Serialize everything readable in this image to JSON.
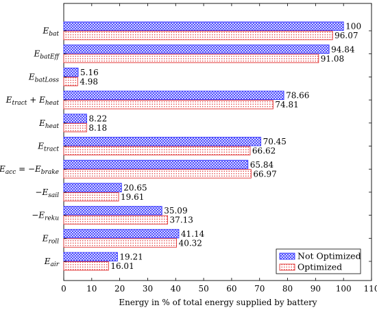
{
  "chart_data": {
    "type": "bar",
    "orientation": "horizontal",
    "xlabel": "Energy in % of total energy supplied by battery",
    "xlim": [
      0,
      110
    ],
    "xticks": [
      "0",
      "10",
      "20",
      "30",
      "40",
      "50",
      "60",
      "70",
      "80",
      "90",
      "100",
      "110"
    ],
    "categories": [
      [
        {
          "t": "E"
        },
        {
          "t": "bat",
          "sub": true
        }
      ],
      [
        {
          "t": "E"
        },
        {
          "t": "batEff",
          "sub": true
        }
      ],
      [
        {
          "t": "E"
        },
        {
          "t": "batLoss",
          "sub": true
        }
      ],
      [
        {
          "t": "E"
        },
        {
          "t": "tract",
          "sub": true
        },
        {
          "t": " + ",
          "upright": true
        },
        {
          "t": "E"
        },
        {
          "t": "heat",
          "sub": true
        }
      ],
      [
        {
          "t": "E"
        },
        {
          "t": "heat",
          "sub": true
        }
      ],
      [
        {
          "t": "E"
        },
        {
          "t": "tract",
          "sub": true
        }
      ],
      [
        {
          "t": "E"
        },
        {
          "t": "acc",
          "sub": true
        },
        {
          "t": " = −",
          "upright": true
        },
        {
          "t": "E"
        },
        {
          "t": "brake",
          "sub": true
        }
      ],
      [
        {
          "t": "−",
          "upright": true
        },
        {
          "t": "E"
        },
        {
          "t": "sail",
          "sub": true
        }
      ],
      [
        {
          "t": "−",
          "upright": true
        },
        {
          "t": "E"
        },
        {
          "t": "reku",
          "sub": true
        }
      ],
      [
        {
          "t": "E"
        },
        {
          "t": "roll",
          "sub": true
        }
      ],
      [
        {
          "t": "E"
        },
        {
          "t": "air",
          "sub": true
        }
      ]
    ],
    "series": [
      {
        "name": "Not Optimized",
        "color": "#3333ff",
        "pattern": "crosshatch",
        "values": [
          100,
          94.84,
          5.16,
          78.66,
          8.22,
          70.45,
          65.84,
          20.65,
          35.09,
          41.14,
          19.21
        ],
        "labels": [
          "100",
          "94.84",
          "5.16",
          "78.66",
          "8.22",
          "70.45",
          "65.84",
          "20.65",
          "35.09",
          "41.14",
          "19.21"
        ]
      },
      {
        "name": "Optimized",
        "color": "#e03030",
        "pattern": "dots",
        "values": [
          96.07,
          91.08,
          4.98,
          74.81,
          8.18,
          66.62,
          66.97,
          19.61,
          37.13,
          40.32,
          16.01
        ],
        "labels": [
          "96.07",
          "91.08",
          "4.98",
          "74.81",
          "8.18",
          "66.62",
          "66.97",
          "19.61",
          "37.13",
          "40.32",
          "16.01"
        ]
      }
    ],
    "legend_position": "bottom-right",
    "grid": false
  }
}
